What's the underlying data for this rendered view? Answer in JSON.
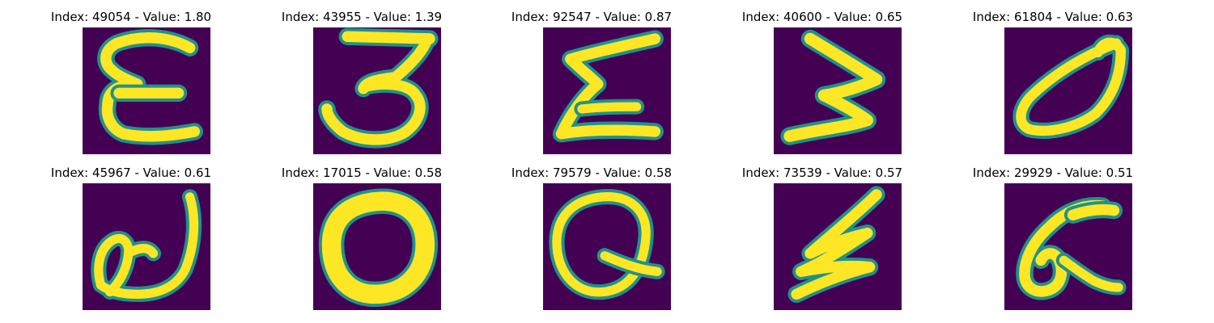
{
  "panels": [
    {
      "index": "49054",
      "value": "1.80",
      "title": "Index: 49054 - Value: 1.80",
      "glyph": "epsilon-shape"
    },
    {
      "index": "43955",
      "value": "1.39",
      "title": "Index: 43955 - Value: 1.39",
      "glyph": "digit-3-shape"
    },
    {
      "index": "92547",
      "value": "0.87",
      "title": "Index: 92547 - Value: 0.87",
      "glyph": "sigma-shape"
    },
    {
      "index": "40600",
      "value": "0.65",
      "title": "Index: 40600 - Value: 0.65",
      "glyph": "zigzag-w-shape"
    },
    {
      "index": "61804",
      "value": "0.63",
      "title": "Index: 61804 - Value: 0.63",
      "glyph": "leaf-loop-shape"
    },
    {
      "index": "45967",
      "value": "0.61",
      "title": "Index: 45967 - Value: 0.61",
      "glyph": "looped-a-shape"
    },
    {
      "index": "17015",
      "value": "0.58",
      "title": "Index: 17015 - Value: 0.58",
      "glyph": "thick-o-shape"
    },
    {
      "index": "79579",
      "value": "0.58",
      "title": "Index: 79579 - Value: 0.58",
      "glyph": "q-shape"
    },
    {
      "index": "73539",
      "value": "0.57",
      "title": "Index: 73539 - Value: 0.57",
      "glyph": "zigzag-z-shape"
    },
    {
      "index": "29929",
      "value": "0.51",
      "title": "Index: 29929 - Value: 0.51",
      "glyph": "alpha-shape"
    }
  ],
  "colors": {
    "background": "#440154",
    "stroke_edge": "#21918c",
    "stroke_core": "#fde725",
    "title_text": "#000000"
  }
}
